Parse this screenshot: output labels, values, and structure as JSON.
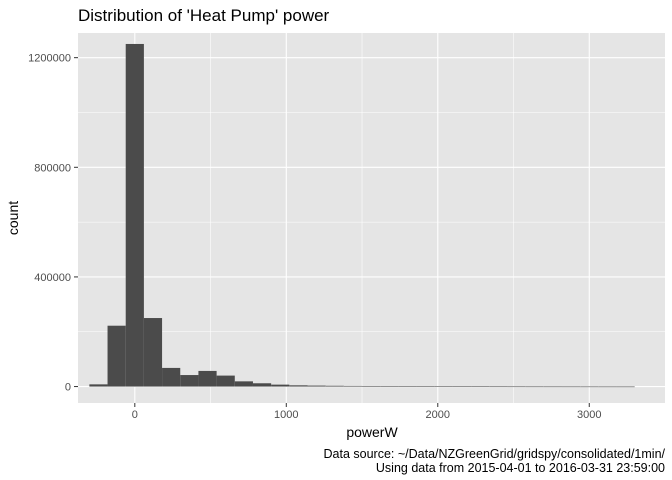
{
  "chart_data": {
    "type": "bar",
    "title": "Distribution of 'Heat Pump' power",
    "xlabel": "powerW",
    "ylabel": "count",
    "caption_lines": [
      "Data source: ~/Data/NZGreenGrid/gridspy/consolidated/1min/",
      "Using data from 2015-04-01 to 2016-03-31 23:59:00"
    ],
    "xlim": [
      -375,
      3500
    ],
    "ylim": [
      -60000,
      1290000
    ],
    "x_ticks": [
      0,
      1000,
      2000,
      3000
    ],
    "x_tick_labels": [
      "0",
      "1000",
      "2000",
      "3000"
    ],
    "y_ticks": [
      0,
      400000,
      800000,
      1200000
    ],
    "y_tick_labels": [
      "0",
      "400000",
      "800000",
      "1200000"
    ],
    "bin_width": 120,
    "bins": [
      {
        "x": -240,
        "count": 8000
      },
      {
        "x": -120,
        "count": 222000
      },
      {
        "x": 0,
        "count": 1250000
      },
      {
        "x": 120,
        "count": 250000
      },
      {
        "x": 240,
        "count": 68000
      },
      {
        "x": 360,
        "count": 42000
      },
      {
        "x": 480,
        "count": 57000
      },
      {
        "x": 600,
        "count": 40000
      },
      {
        "x": 720,
        "count": 19000
      },
      {
        "x": 840,
        "count": 12000
      },
      {
        "x": 960,
        "count": 7000
      },
      {
        "x": 1080,
        "count": 4500
      },
      {
        "x": 1200,
        "count": 3500
      },
      {
        "x": 1320,
        "count": 2800
      },
      {
        "x": 1440,
        "count": 2200
      },
      {
        "x": 1560,
        "count": 1800
      },
      {
        "x": 1680,
        "count": 1500
      },
      {
        "x": 1800,
        "count": 1300
      },
      {
        "x": 1920,
        "count": 1100
      },
      {
        "x": 2040,
        "count": 900
      },
      {
        "x": 2160,
        "count": 750
      },
      {
        "x": 2280,
        "count": 600
      },
      {
        "x": 2400,
        "count": 500
      },
      {
        "x": 2520,
        "count": 400
      },
      {
        "x": 2640,
        "count": 300
      },
      {
        "x": 2760,
        "count": 250
      },
      {
        "x": 2880,
        "count": 200
      },
      {
        "x": 3000,
        "count": 150
      },
      {
        "x": 3120,
        "count": 100
      },
      {
        "x": 3240,
        "count": 80
      }
    ],
    "grid": true,
    "legend": "none",
    "colors": {
      "panel_background": "#e5e5e5",
      "grid_major": "#ffffff",
      "bar_fill": "#4b4b4b"
    }
  }
}
